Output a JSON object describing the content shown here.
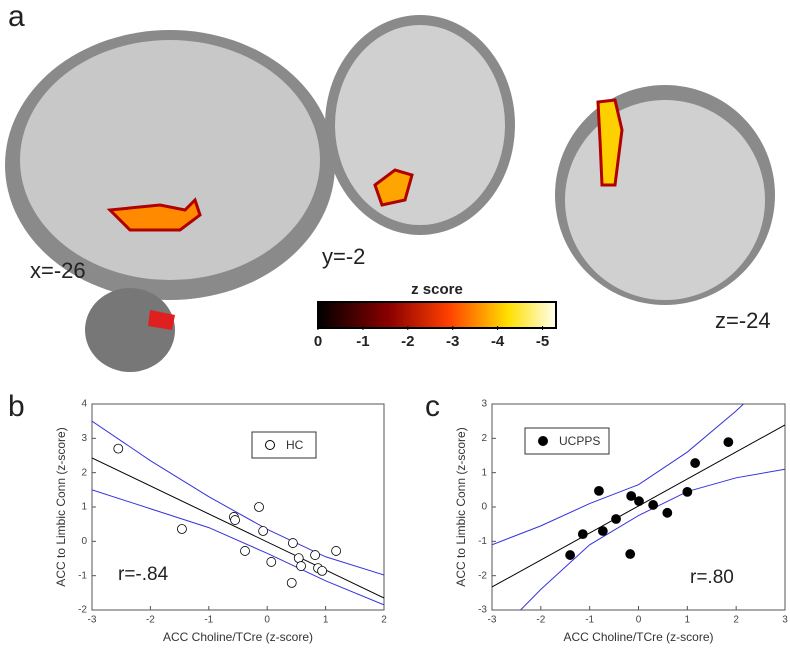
{
  "panels": {
    "a": "a",
    "b": "b",
    "c": "c"
  },
  "slices": {
    "sagittal": "x=-26",
    "coronal": "y=-2",
    "axial": "z=-24"
  },
  "colorbar": {
    "title": "z score",
    "lim": [
      0,
      -5.3
    ],
    "ticks": [
      0,
      -1,
      -2,
      -3,
      -4,
      -5
    ]
  },
  "chart_data": [
    {
      "type": "scatter",
      "xlabel": "ACC Choline/TCre (z-score)",
      "ylabel": "ACC to Limbic Conn (z-score)",
      "annotation": "r=-.84",
      "xlim": [
        -3,
        2
      ],
      "ylim": [
        -2,
        4
      ],
      "xticks": [
        -3,
        -2,
        -1,
        0,
        1,
        2
      ],
      "yticks": [
        -2,
        -1,
        0,
        1,
        2,
        3,
        4
      ],
      "series": [
        {
          "name": "HC",
          "marker": "open",
          "color": "#000000",
          "x": [
            -2.55,
            -1.46,
            -0.57,
            -0.55,
            -0.14,
            -0.07,
            -0.38,
            0.07,
            0.44,
            0.54,
            0.58,
            0.42,
            0.82,
            0.87,
            0.94,
            1.18
          ],
          "values": [
            2.7,
            0.36,
            0.71,
            0.62,
            1.0,
            0.3,
            -0.28,
            -0.6,
            -0.05,
            -0.49,
            -0.72,
            -1.21,
            -0.4,
            -0.78,
            -0.86,
            -0.28
          ]
        },
        {
          "marker": "line",
          "color": "#000000",
          "x": [
            -3,
            2
          ],
          "values": [
            2.43,
            -1.65
          ]
        },
        {
          "marker": "line",
          "color": "#3333dd",
          "x": [
            -3,
            -2,
            -1,
            0,
            1,
            2
          ],
          "values": [
            3.5,
            2.35,
            1.3,
            0.35,
            -0.45,
            -0.98
          ]
        },
        {
          "marker": "line",
          "color": "#3333dd",
          "x": [
            -3,
            -2,
            -1,
            0,
            1,
            2
          ],
          "values": [
            1.5,
            0.95,
            0.4,
            -0.35,
            -1.15,
            -1.85
          ]
        }
      ]
    },
    {
      "type": "scatter",
      "xlabel": "ACC Choline/TCre (z-score)",
      "ylabel": "ACC to Limbic Conn (z-score)",
      "annotation": "r=.80",
      "xlim": [
        -3,
        3
      ],
      "ylim": [
        -3,
        3
      ],
      "xticks": [
        -3,
        -2,
        -1,
        0,
        1,
        2,
        3
      ],
      "yticks": [
        -3,
        -2,
        -1,
        0,
        1,
        2,
        3
      ],
      "series": [
        {
          "name": "UCPPS",
          "marker": "filled",
          "color": "#000000",
          "x": [
            -1.4,
            -1.14,
            -0.81,
            -0.73,
            -0.46,
            -0.15,
            -0.17,
            0.01,
            0.3,
            0.59,
            1.0,
            1.16,
            1.84
          ],
          "values": [
            -1.4,
            -0.79,
            0.47,
            -0.7,
            -0.35,
            0.32,
            -1.37,
            0.17,
            0.06,
            -0.17,
            0.44,
            1.28,
            1.89
          ]
        },
        {
          "marker": "line",
          "color": "#000000",
          "x": [
            -3,
            3
          ],
          "values": [
            -2.33,
            2.39
          ]
        },
        {
          "marker": "line",
          "color": "#3333dd",
          "x": [
            -3,
            -2,
            -1,
            0,
            1,
            2,
            2.3
          ],
          "values": [
            -1.1,
            -0.55,
            0.1,
            0.65,
            1.6,
            2.8,
            3.2
          ]
        },
        {
          "marker": "line",
          "color": "#3333dd",
          "x": [
            -2.45,
            -2,
            -1,
            0,
            1,
            2,
            3
          ],
          "values": [
            -3.05,
            -2.4,
            -1.1,
            -0.25,
            0.45,
            0.85,
            1.1
          ]
        }
      ]
    }
  ]
}
